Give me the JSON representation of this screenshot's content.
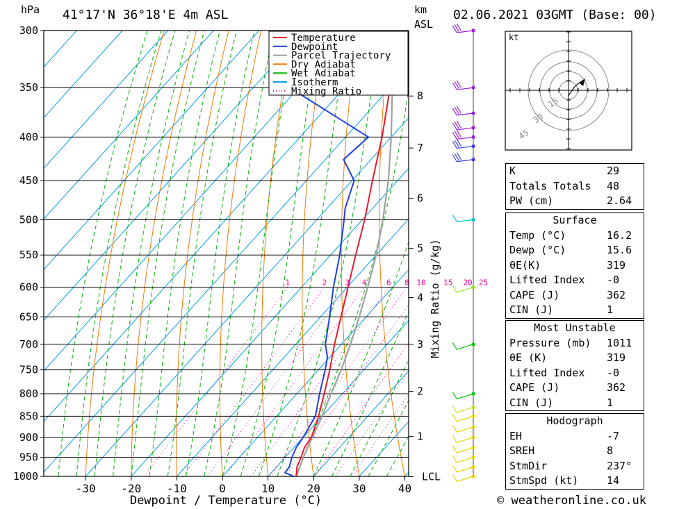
{
  "header": {
    "pressure_unit": "hPa",
    "location": "41°17'N  36°18'E  4m  ASL",
    "height_unit_line1": "km",
    "height_unit_line2": "ASL",
    "datetime": "02.06.2021  03GMT  (Base: 00)"
  },
  "chart_data": {
    "type": "skew-t",
    "pressure_levels": [
      300,
      350,
      400,
      450,
      500,
      550,
      600,
      650,
      700,
      750,
      800,
      850,
      900,
      950,
      1000
    ],
    "temperature_ticks": [
      -30,
      -20,
      -10,
      0,
      10,
      20,
      30,
      40
    ],
    "xlim": [
      -40,
      40
    ],
    "ylim": [
      1000,
      300
    ],
    "xlabel": "Dewpoint / Temperature (°C)",
    "ylabel_right": "Mixing Ratio (g/kg)",
    "height_ticks": [
      {
        "label": "8",
        "p": 358
      },
      {
        "label": "7",
        "p": 412
      },
      {
        "label": "6",
        "p": 472
      },
      {
        "label": "5",
        "p": 540
      },
      {
        "label": "4",
        "p": 617
      },
      {
        "label": "3",
        "p": 700
      },
      {
        "label": "2",
        "p": 795
      },
      {
        "label": "1",
        "p": 898
      },
      {
        "label": "LCL",
        "p": 1001
      }
    ],
    "mixing_ratio_labels": [
      "1",
      "2",
      "3",
      "4",
      "6",
      "8",
      "10",
      "15",
      "20",
      "25"
    ],
    "legend": [
      "Temperature",
      "Dewpoint",
      "Parcel Trajectory",
      "Dry Adiabat",
      "Wet Adiabat",
      "Isotherm",
      "Mixing Ratio"
    ],
    "colors": {
      "temperature": "#e8192c",
      "dewpoint": "#1f3fe0",
      "parcel": "#a0a0a0",
      "dry_adiabat": "#f07800",
      "wet_adiabat": "#00b400",
      "isotherm": "#00a0e6",
      "mixing_ratio": "#e6009a"
    },
    "temperature_profile": [
      {
        "p": 1000,
        "t": 16.2
      },
      {
        "p": 975,
        "t": 14.5
      },
      {
        "p": 950,
        "t": 13.5
      },
      {
        "p": 925,
        "t": 12.3
      },
      {
        "p": 900,
        "t": 11.8
      },
      {
        "p": 875,
        "t": 10.5
      },
      {
        "p": 850,
        "t": 9.2
      },
      {
        "p": 800,
        "t": 6.0
      },
      {
        "p": 750,
        "t": 2.5
      },
      {
        "p": 700,
        "t": -1.5
      },
      {
        "p": 650,
        "t": -5.5
      },
      {
        "p": 600,
        "t": -9.8
      },
      {
        "p": 550,
        "t": -14.5
      },
      {
        "p": 500,
        "t": -19.5
      },
      {
        "p": 450,
        "t": -25.5
      },
      {
        "p": 400,
        "t": -32.0
      },
      {
        "p": 350,
        "t": -40.0
      },
      {
        "p": 300,
        "t": -49.0
      }
    ],
    "dewpoint_profile": [
      {
        "p": 1000,
        "t": 15.6
      },
      {
        "p": 990,
        "t": 13.0
      },
      {
        "p": 975,
        "t": 12.8
      },
      {
        "p": 950,
        "t": 11.5
      },
      {
        "p": 925,
        "t": 10.5
      },
      {
        "p": 900,
        "t": 10.0
      },
      {
        "p": 850,
        "t": 8.5
      },
      {
        "p": 800,
        "t": 5.0
      },
      {
        "p": 750,
        "t": 1.5
      },
      {
        "p": 725,
        "t": -0.5
      },
      {
        "p": 700,
        "t": -3.5
      },
      {
        "p": 650,
        "t": -8.0
      },
      {
        "p": 600,
        "t": -13.0
      },
      {
        "p": 550,
        "t": -18.0
      },
      {
        "p": 500,
        "t": -24.0
      },
      {
        "p": 485,
        "t": -26.0
      },
      {
        "p": 450,
        "t": -29.5
      },
      {
        "p": 425,
        "t": -36.0
      },
      {
        "p": 400,
        "t": -35.0
      },
      {
        "p": 350,
        "t": -62.0
      },
      {
        "p": 325,
        "t": -56.0
      },
      {
        "p": 300,
        "t": -63.0
      }
    ],
    "parcel_profile": [
      {
        "p": 1000,
        "t": 16.2
      },
      {
        "p": 950,
        "t": 14.0
      },
      {
        "p": 900,
        "t": 12.0
      },
      {
        "p": 850,
        "t": 10.0
      },
      {
        "p": 800,
        "t": 7.5
      },
      {
        "p": 750,
        "t": 5.0
      },
      {
        "p": 700,
        "t": 2.0
      },
      {
        "p": 650,
        "t": -1.5
      },
      {
        "p": 600,
        "t": -5.5
      },
      {
        "p": 550,
        "t": -10.0
      },
      {
        "p": 500,
        "t": -15.5
      },
      {
        "p": 450,
        "t": -22.0
      },
      {
        "p": 400,
        "t": -30.0
      },
      {
        "p": 350,
        "t": -39.5
      },
      {
        "p": 300,
        "t": -51.0
      }
    ],
    "wind_profile": [
      {
        "p": 300,
        "color": "#9b1fd8"
      },
      {
        "p": 350,
        "color": "#9b1fd8"
      },
      {
        "p": 375,
        "color": "#9b1fd8"
      },
      {
        "p": 390,
        "color": "#9b1fd8"
      },
      {
        "p": 400,
        "color": "#9b1fd8"
      },
      {
        "p": 410,
        "color": "#3c3cf0"
      },
      {
        "p": 425,
        "color": "#3c3cf0"
      },
      {
        "p": 500,
        "color": "#00c8c8"
      },
      {
        "p": 600,
        "color": "#96dc28"
      },
      {
        "p": 700,
        "color": "#00c800"
      },
      {
        "p": 800,
        "color": "#00c800"
      },
      {
        "p": 830,
        "color": "#c8dc28"
      },
      {
        "p": 850,
        "color": "#e6d200"
      },
      {
        "p": 875,
        "color": "#e6d200"
      },
      {
        "p": 900,
        "color": "#e6d200"
      },
      {
        "p": 925,
        "color": "#e6d200"
      },
      {
        "p": 950,
        "color": "#e6d200"
      },
      {
        "p": 975,
        "color": "#e6d200"
      },
      {
        "p": 1000,
        "color": "#e6d200"
      }
    ]
  },
  "hodograph": {
    "unit": "kt",
    "ring_labels": [
      "15",
      "30",
      "45"
    ]
  },
  "indices": {
    "k_label": "K",
    "k_value": "29",
    "tt_label": "Totals Totals",
    "tt_value": "48",
    "pw_label": "PW (cm)",
    "pw_value": "2.64"
  },
  "surface": {
    "title": "Surface",
    "temp_label": "Temp (°C)",
    "temp_value": "16.2",
    "dewp_label": "Dewp (°C)",
    "dewp_value": "15.6",
    "theta_label": "θE(K)",
    "theta_value": "319",
    "li_label": "Lifted Index",
    "li_value": "-0",
    "cape_label": "CAPE (J)",
    "cape_value": "362",
    "cin_label": "CIN (J)",
    "cin_value": "1"
  },
  "most_unstable": {
    "title": "Most Unstable",
    "pressure_label": "Pressure (mb)",
    "pressure_value": "1011",
    "theta_label": "θE (K)",
    "theta_value": "319",
    "li_label": "Lifted Index",
    "li_value": "-0",
    "cape_label": "CAPE (J)",
    "cape_value": "362",
    "cin_label": "CIN (J)",
    "cin_value": "1"
  },
  "hodograph_stats": {
    "title": "Hodograph",
    "eh_label": "EH",
    "eh_value": "-7",
    "sreh_label": "SREH",
    "sreh_value": "8",
    "stmdir_label": "StmDir",
    "stmdir_value": "237°",
    "stmspd_label": "StmSpd (kt)",
    "stmspd_value": "14"
  },
  "footer": {
    "credit": "© weatheronline.co.uk"
  }
}
